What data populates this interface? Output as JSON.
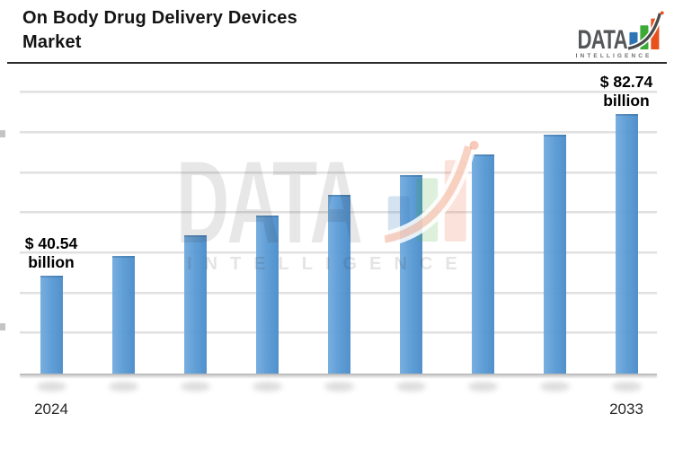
{
  "header": {
    "title_line1": "On Body Drug Delivery Devices",
    "title_line2": "Market"
  },
  "logo": {
    "name": "DATA",
    "tagline": "INTELLIGENCE",
    "colors": {
      "name": "#55565A",
      "tagline": "#6D6E71",
      "bar_blue": "#2E74B5",
      "bar_green": "#3CAA36",
      "bar_orange": "#E8501E",
      "swoosh": "#4A4A4C",
      "registered_dot": "#E8501E"
    }
  },
  "watermark": {
    "name": "DATA",
    "tagline": "INTELLIGENCE"
  },
  "chart_data": {
    "type": "bar",
    "title": "On Body Drug Delivery Devices Market",
    "unit": "USD billion",
    "categories": [
      "2024",
      "",
      "",
      "",
      "",
      "",
      "",
      "",
      "2033"
    ],
    "values": [
      40.54,
      45.82,
      51.09,
      56.37,
      61.64,
      66.92,
      72.19,
      77.47,
      82.74
    ],
    "values_note": "Only the first and last bars are labeled in the image; intermediate values estimated from bar heights (linear growth between 40.54 and 82.74).",
    "annotations": [
      {
        "bar_index": 0,
        "line1": "$ 40.54",
        "line2": "billion"
      },
      {
        "bar_index": 8,
        "line1": "$ 82.74",
        "line2": "billion"
      }
    ],
    "xlabel": "",
    "ylabel": "",
    "ylim_baseline": 15,
    "gridline_count": 7,
    "grid": "horizontal",
    "legend": "none",
    "bar_color": "#5B9BD5",
    "axis_color": "#BDBDBD",
    "gridline_color": "#E0E0E0"
  }
}
